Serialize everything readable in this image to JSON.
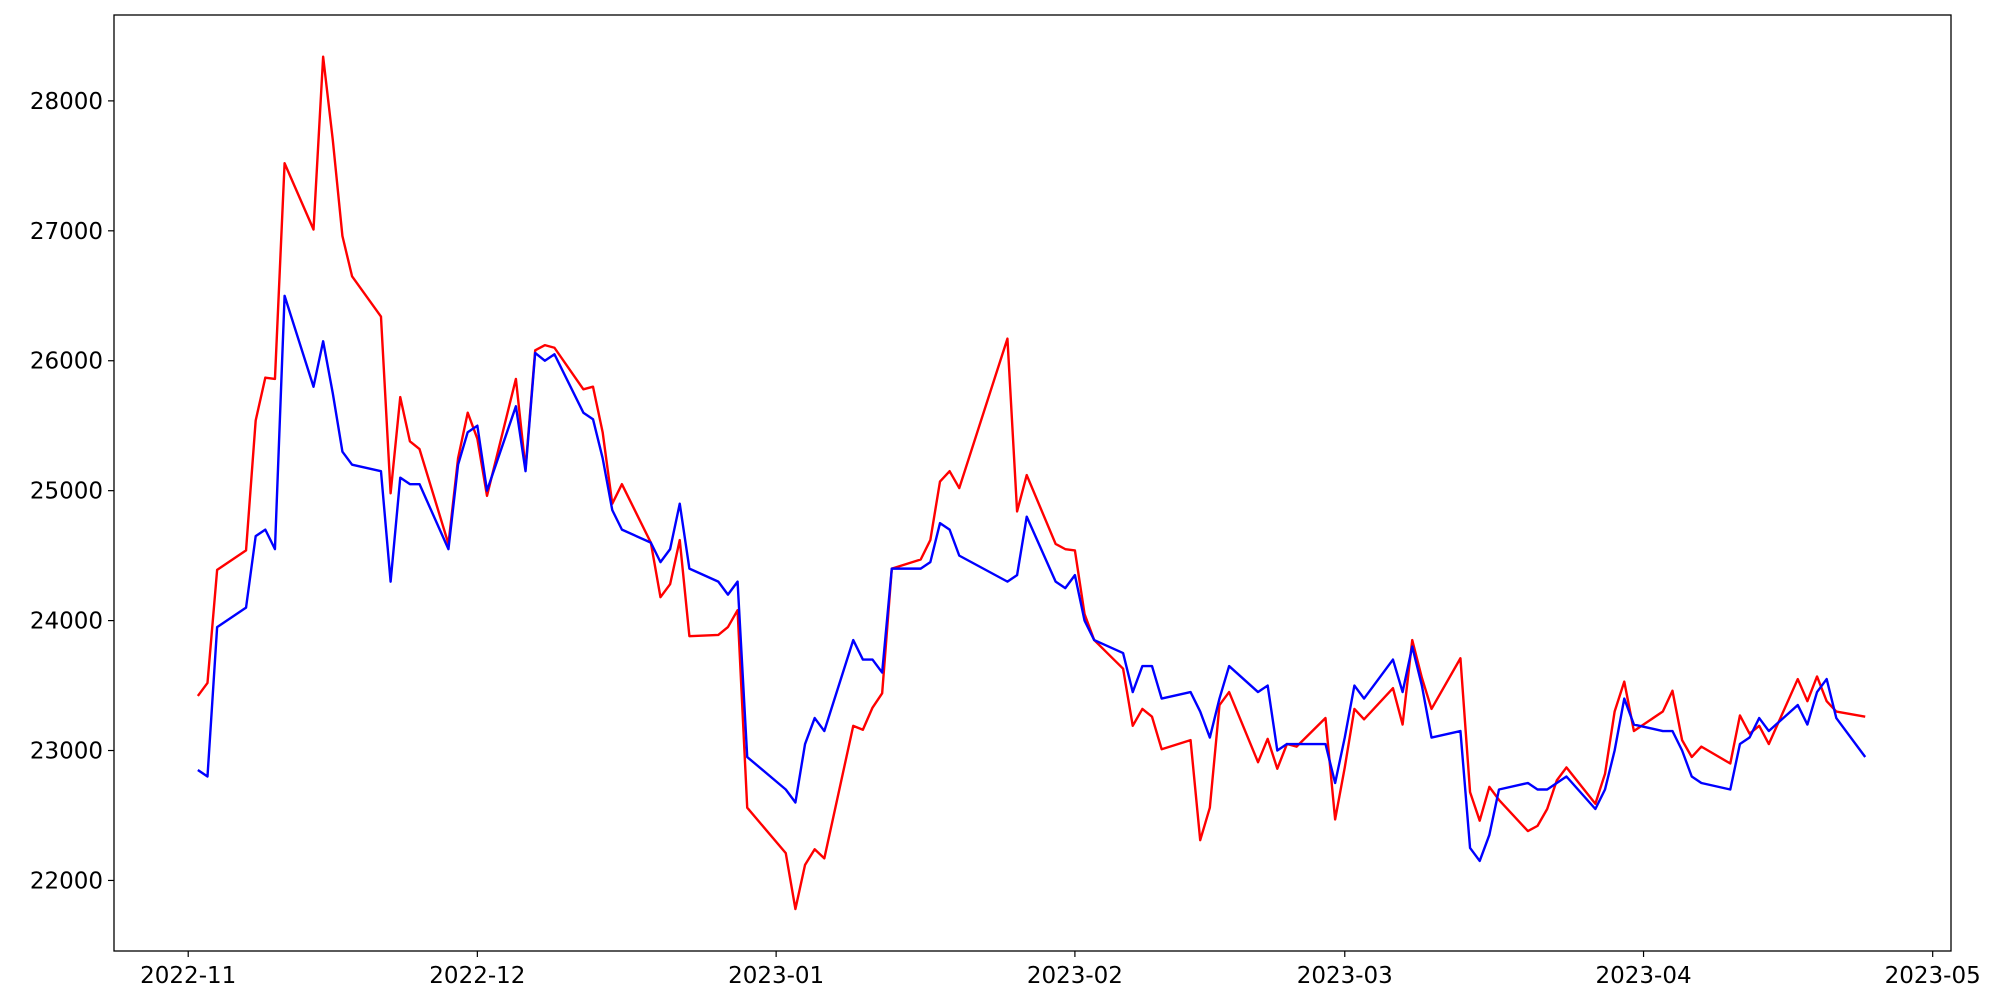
{
  "chart_data": {
    "type": "line",
    "x": [
      19298,
      19299,
      19300,
      19303,
      19304,
      19305,
      19306,
      19307,
      19310,
      19311,
      19312,
      19313,
      19314,
      19317,
      19318,
      19319,
      19320,
      19321,
      19324,
      19325,
      19326,
      19327,
      19328,
      19331,
      19332,
      19333,
      19334,
      19335,
      19338,
      19339,
      19340,
      19341,
      19342,
      19345,
      19346,
      19347,
      19348,
      19349,
      19352,
      19353,
      19354,
      19355,
      19359,
      19360,
      19361,
      19362,
      19363,
      19366,
      19367,
      19368,
      19369,
      19370,
      19373,
      19374,
      19375,
      19376,
      19377,
      19382,
      19383,
      19384,
      19387,
      19388,
      19389,
      19390,
      19391,
      19394,
      19395,
      19396,
      19397,
      19398,
      19401,
      19402,
      19403,
      19404,
      19405,
      19408,
      19409,
      19410,
      19411,
      19412,
      19415,
      19416,
      19417,
      19418,
      19419,
      19422,
      19423,
      19424,
      19425,
      19426,
      19429,
      19430,
      19431,
      19432,
      19433,
      19436,
      19437,
      19438,
      19439,
      19440,
      19443,
      19444,
      19445,
      19446,
      19447,
      19450,
      19451,
      19452,
      19453,
      19454,
      19457,
      19458,
      19459,
      19460,
      19461,
      19464,
      19465,
      19466,
      19467,
      19468,
      19471
    ],
    "series": [
      {
        "color": "#ff0000",
        "values": [
          23420,
          23520,
          24390,
          24540,
          25540,
          25870,
          25860,
          27520,
          27010,
          28340,
          27700,
          26960,
          26650,
          26340,
          24980,
          25720,
          25380,
          25320,
          24590,
          25250,
          25600,
          25400,
          24960,
          25860,
          25170,
          26080,
          26120,
          26100,
          25780,
          25800,
          25450,
          24900,
          25050,
          24600,
          24180,
          24280,
          24620,
          23880,
          23890,
          23950,
          24080,
          22560,
          22210,
          21780,
          22120,
          22240,
          22170,
          23190,
          23160,
          23330,
          23440,
          24400,
          24470,
          24620,
          25070,
          25150,
          25020,
          26170,
          24840,
          25120,
          24590,
          24550,
          24540,
          24050,
          23850,
          23630,
          23190,
          23320,
          23260,
          23010,
          23080,
          22310,
          22560,
          23350,
          23450,
          22910,
          23090,
          22860,
          23050,
          23030,
          23250,
          22470,
          22870,
          23320,
          23240,
          23480,
          23200,
          23850,
          23560,
          23320,
          23710,
          22680,
          22460,
          22720,
          22620,
          22380,
          22420,
          22550,
          22770,
          22870,
          22590,
          22820,
          23300,
          23530,
          23150,
          23300,
          23460,
          23080,
          22950,
          23030,
          22900,
          23270,
          23130,
          23190,
          23050,
          23550,
          23380,
          23570,
          23380,
          23300,
          23260
        ]
      },
      {
        "color": "#0000ff",
        "values": [
          22850,
          22800,
          23950,
          24100,
          24650,
          24700,
          24550,
          26500,
          25800,
          26150,
          25750,
          25300,
          25200,
          25150,
          24300,
          25100,
          25050,
          25050,
          24550,
          25200,
          25450,
          25500,
          25000,
          25650,
          25150,
          26060,
          26000,
          26050,
          25600,
          25550,
          25250,
          24850,
          24700,
          24600,
          24450,
          24550,
          24900,
          24400,
          24300,
          24200,
          24300,
          22950,
          22700,
          22600,
          23050,
          23250,
          23150,
          23850,
          23700,
          23700,
          23600,
          24400,
          24400,
          24450,
          24750,
          24700,
          24500,
          24300,
          24350,
          24800,
          24300,
          24250,
          24350,
          24000,
          23850,
          23750,
          23450,
          23650,
          23650,
          23400,
          23450,
          23300,
          23100,
          23400,
          23650,
          23450,
          23500,
          23000,
          23050,
          23050,
          23050,
          22750,
          23100,
          23500,
          23400,
          23700,
          23450,
          23800,
          23500,
          23100,
          23150,
          22250,
          22150,
          22350,
          22700,
          22750,
          22700,
          22700,
          22750,
          22800,
          22550,
          22700,
          23000,
          23400,
          23200,
          23150,
          23150,
          23000,
          22800,
          22750,
          22700,
          23050,
          23100,
          23250,
          23150,
          23350,
          23200,
          23450,
          23550,
          23250,
          22950
        ]
      }
    ],
    "xlim": [
      19289.3,
      19479.9
    ],
    "xticks": [
      {
        "value": 19297,
        "label": "2022-11"
      },
      {
        "value": 19327,
        "label": "2022-12"
      },
      {
        "value": 19358,
        "label": "2023-01"
      },
      {
        "value": 19389,
        "label": "2023-02"
      },
      {
        "value": 19417,
        "label": "2023-03"
      },
      {
        "value": 19448,
        "label": "2023-04"
      },
      {
        "value": 19478,
        "label": "2023-05"
      }
    ],
    "ylim": [
      21457,
      28661
    ],
    "yticks": [
      22000,
      23000,
      24000,
      25000,
      26000,
      27000,
      28000
    ]
  }
}
